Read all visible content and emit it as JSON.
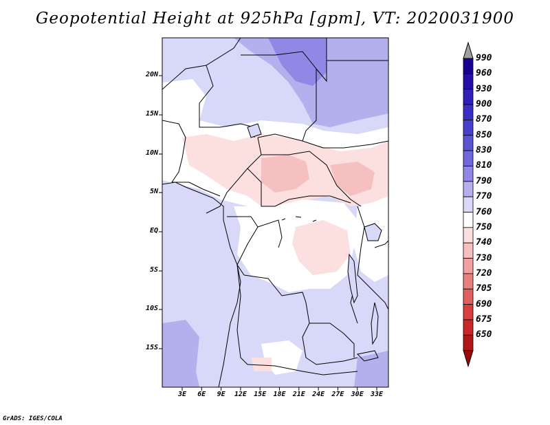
{
  "title": "Geopotential Height at 925hPa [gpm], VT: 2020031900",
  "footer": "GrADS: IGES/COLA",
  "map": {
    "lat_labels": [
      "20N",
      "15N",
      "10N",
      "5N",
      "EQ",
      "5S",
      "10S",
      "15S"
    ],
    "lon_labels": [
      "3E",
      "6E",
      "9E",
      "12E",
      "15E",
      "18E",
      "21E",
      "24E",
      "27E",
      "30E",
      "33E"
    ]
  },
  "colorbar": {
    "levels": [
      "990",
      "960",
      "930",
      "900",
      "870",
      "850",
      "830",
      "810",
      "790",
      "770",
      "760",
      "750",
      "740",
      "730",
      "720",
      "705",
      "690",
      "675",
      "650"
    ],
    "colors": [
      "#1a0090",
      "#2410a8",
      "#3020b8",
      "#3a2ec4",
      "#4840cc",
      "#5a54d4",
      "#7068dc",
      "#9088e4",
      "#b4b0ee",
      "#d8d8f8",
      "#ffffff",
      "#fce0e0",
      "#f6c0c0",
      "#f0a0a0",
      "#e88080",
      "#e06060",
      "#d84040",
      "#c82828",
      "#b01818",
      "#9a0a0a"
    ],
    "top_arrow_color": "#a0a0a0"
  }
}
